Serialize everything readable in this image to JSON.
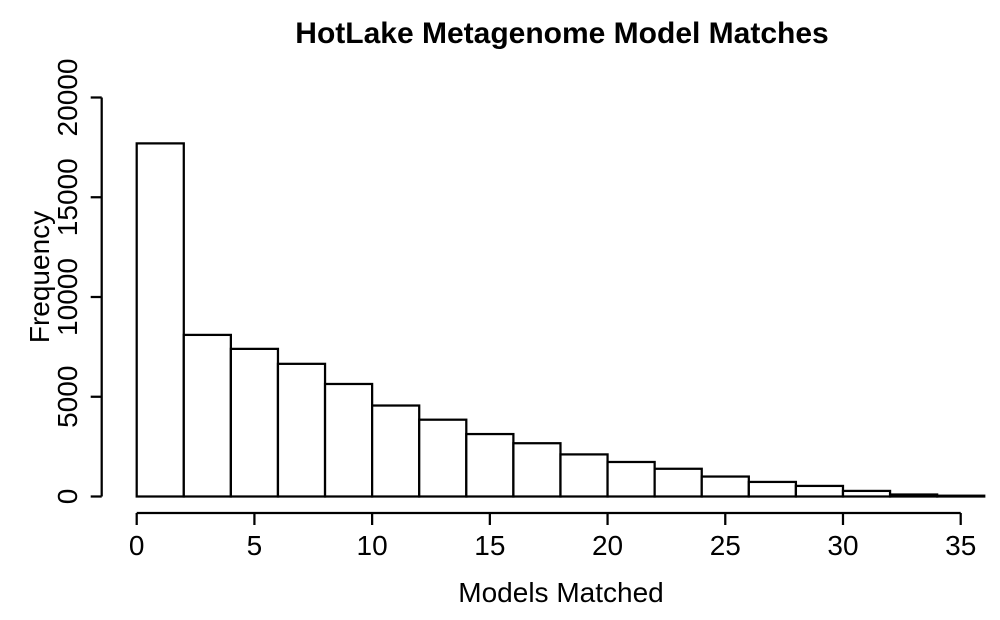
{
  "chart_data": {
    "type": "bar",
    "subtype": "histogram",
    "title": "HotLake Metagenome Model Matches",
    "xlabel": "Models Matched",
    "ylabel": "Frequency",
    "bin_width": 2,
    "bin_edges": [
      0,
      2,
      4,
      6,
      8,
      10,
      12,
      14,
      16,
      18,
      20,
      22,
      24,
      26,
      28,
      30,
      32,
      34,
      36
    ],
    "counts": [
      17700,
      8100,
      7400,
      6650,
      5640,
      4560,
      3850,
      3130,
      2670,
      2110,
      1730,
      1390,
      1000,
      730,
      530,
      280,
      100,
      40
    ],
    "x_ticks": [
      0,
      5,
      10,
      15,
      20,
      25,
      30,
      35
    ],
    "y_ticks": [
      0,
      5000,
      10000,
      15000,
      20000
    ],
    "xlim": [
      0,
      36
    ],
    "ylim": [
      0,
      20000
    ],
    "grid": false,
    "legend": null,
    "bar_fill": "#ffffff",
    "bar_stroke": "#000000",
    "axis_color": "#000000",
    "text_color": "#000000",
    "background": "#ffffff"
  }
}
